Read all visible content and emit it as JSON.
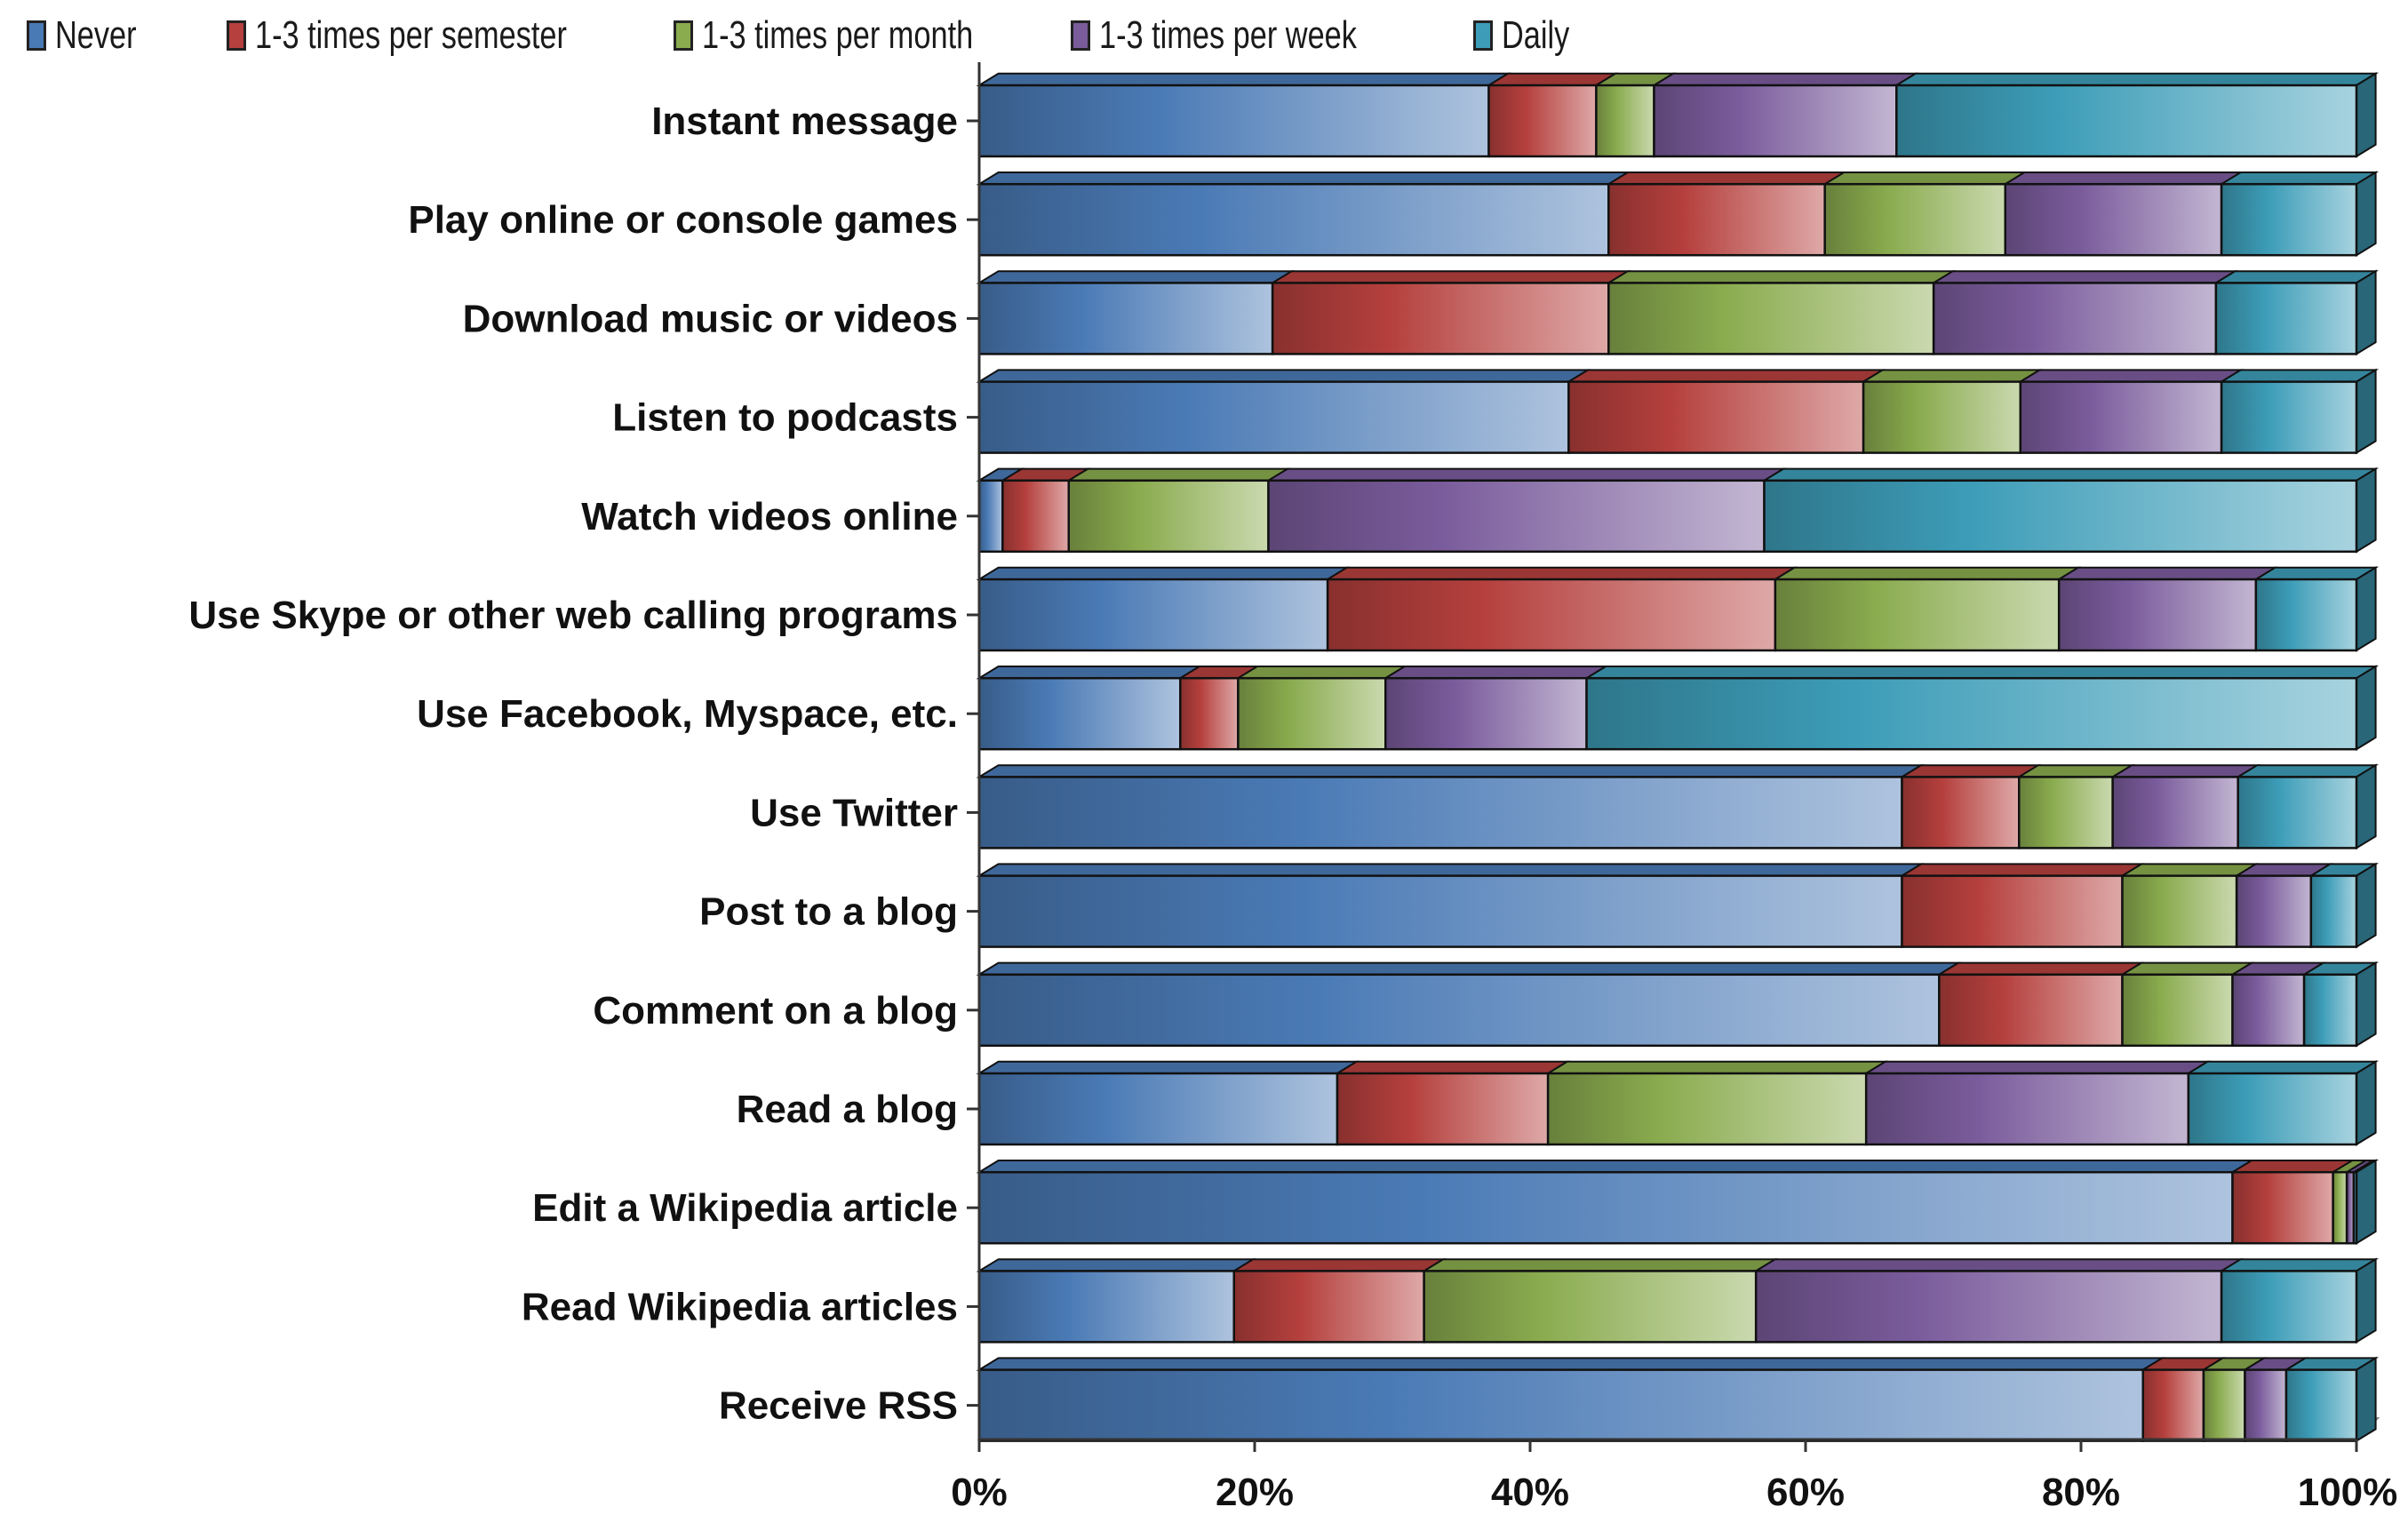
{
  "chart_data": {
    "type": "bar",
    "orientation": "horizontal",
    "stacked": "percent",
    "three_d": true,
    "legend_position": "top",
    "grid": false,
    "categories": [
      "Instant message",
      "Play online or console games",
      "Download music or videos",
      "Listen to podcasts",
      "Watch videos online",
      "Use Skype or other web calling programs",
      "Use Facebook, Myspace, etc.",
      "Use Twitter",
      "Post to a blog",
      "Comment on a blog",
      "Read a blog",
      "Edit a Wikipedia article",
      "Read Wikipedia articles",
      "Receive RSS"
    ],
    "series": [
      {
        "name": "Never",
        "color": "#4a7ab5",
        "values": [
          37,
          45.7,
          21.3,
          42.8,
          1.7,
          25.3,
          14.6,
          67,
          67,
          69.7,
          26,
          91,
          18.5,
          84.5
        ]
      },
      {
        "name": "1-3 times per semester",
        "color": "#b5403d",
        "values": [
          7.8,
          15.7,
          24.4,
          21.4,
          4.8,
          32.5,
          4.2,
          8.5,
          16,
          13.3,
          15.3,
          7.3,
          13.8,
          4.4
        ]
      },
      {
        "name": "1-3 times per month",
        "color": "#8aab4e",
        "values": [
          4.2,
          13.1,
          23.6,
          11.4,
          14.5,
          20.6,
          10.7,
          6.8,
          8.3,
          8,
          23.1,
          1,
          24.1,
          3
        ]
      },
      {
        "name": "1-3 times per week",
        "color": "#7a5c9c",
        "values": [
          17.6,
          15.7,
          20.5,
          14.6,
          36,
          14.3,
          14.6,
          9.1,
          5.4,
          5.2,
          23.4,
          0.5,
          33.8,
          3
        ]
      },
      {
        "name": "Daily",
        "color": "#3d9db8",
        "values": [
          33.4,
          9.8,
          10.2,
          9.8,
          43,
          7.3,
          55.9,
          8.6,
          3.3,
          3.8,
          12.2,
          0.2,
          9.8,
          5.1
        ]
      }
    ],
    "xlim": [
      0,
      100
    ],
    "x_ticks": [
      "0%",
      "20%",
      "40%",
      "60%",
      "80%",
      "100%"
    ]
  }
}
